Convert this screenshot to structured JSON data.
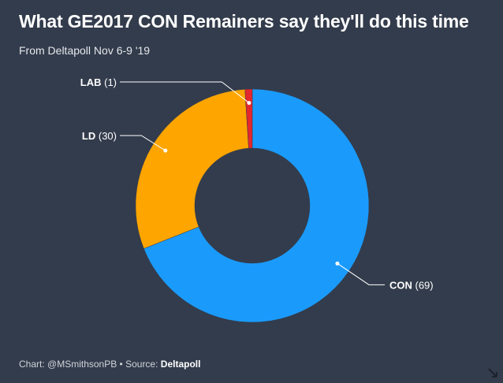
{
  "header": {
    "title": "What GE2017 CON Remainers say they'll do this time",
    "subtitle": "From Deltapoll Nov 6-9 '19"
  },
  "footer": {
    "credit": "Chart: @MSmithsonPB • Source: ",
    "source": "Deltapoll"
  },
  "chart_data": {
    "type": "pie",
    "donut": true,
    "title": "What GE2017 CON Remainers say they'll do this time",
    "subtitle": "From Deltapoll Nov 6-9 '19",
    "slices": [
      {
        "label": "CON",
        "value": 69,
        "display": "(69)",
        "color": "#1a9bfc"
      },
      {
        "label": "LD",
        "value": 30,
        "display": "(30)",
        "color": "#fea500"
      },
      {
        "label": "LAB",
        "value": 1,
        "display": "(1)",
        "color": "#e4262d"
      }
    ],
    "start": "top",
    "direction": "clockwise",
    "legend": "none"
  },
  "colors": {
    "background": "#333c4c",
    "text": "#ffffff"
  }
}
